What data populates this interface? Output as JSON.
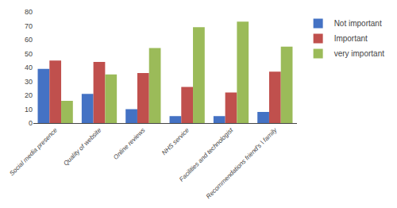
{
  "chart_data": {
    "type": "bar",
    "categories": [
      "Social media presence",
      "Quality of website",
      "Online reviews",
      "NHS service",
      "Facilities and technologist",
      "Recommendations friend's \\ family"
    ],
    "series": [
      {
        "name": "Not important",
        "color": "#4472C4",
        "values": [
          39,
          21,
          10,
          5,
          5,
          8
        ]
      },
      {
        "name": "Important",
        "color": "#C0504D",
        "values": [
          45,
          44,
          36,
          26,
          22,
          37
        ]
      },
      {
        "name": "very important",
        "color": "#9BBB59",
        "values": [
          16,
          35,
          54,
          69,
          73,
          55
        ]
      }
    ],
    "ylim": [
      0,
      80
    ],
    "yticks": [
      0,
      10,
      20,
      30,
      40,
      50,
      60,
      70,
      80
    ],
    "grid": false,
    "legend": "right"
  }
}
